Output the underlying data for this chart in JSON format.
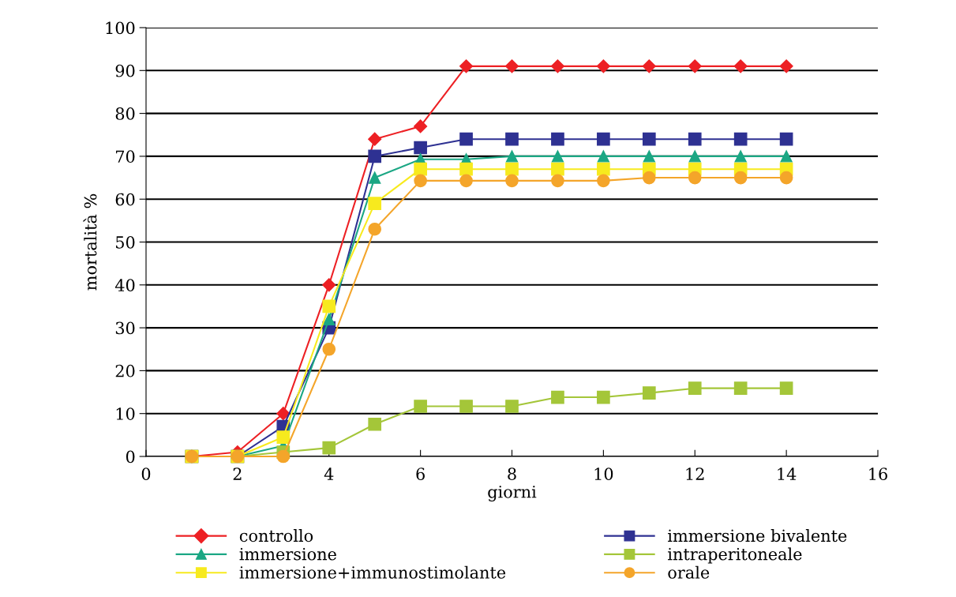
{
  "chart_data": {
    "type": "line",
    "xlabel": "giorni",
    "ylabel": "mortalità %",
    "x": [
      1,
      2,
      3,
      4,
      5,
      6,
      7,
      8,
      9,
      10,
      11,
      12,
      13,
      14
    ],
    "xlim": [
      0,
      16
    ],
    "xticks": [
      0,
      2,
      4,
      6,
      8,
      10,
      12,
      14,
      16
    ],
    "ylim": [
      0,
      100
    ],
    "yticks": [
      0,
      10,
      20,
      30,
      40,
      50,
      60,
      70,
      80,
      90,
      100
    ],
    "grid": "y",
    "legend": "bottom",
    "series": [
      {
        "name": "controllo",
        "color": "#ed2024",
        "marker": "diamond",
        "values": [
          0,
          1,
          10,
          40,
          74,
          77,
          91,
          91,
          91,
          91,
          91,
          91,
          91,
          91
        ]
      },
      {
        "name": "immersione bivalente",
        "color": "#2e3192",
        "marker": "square",
        "values": [
          0,
          0,
          7,
          30,
          70,
          72,
          74,
          74,
          74,
          74,
          74,
          74,
          74,
          74
        ]
      },
      {
        "name": "immersione",
        "color": "#1ba784",
        "marker": "triangle",
        "values": [
          0,
          0,
          2.5,
          32,
          65,
          69.3,
          69.3,
          70,
          70,
          70,
          70,
          70,
          70,
          70
        ]
      },
      {
        "name": "intraperitoneale",
        "color": "#a4c639",
        "marker": "square",
        "values": [
          0,
          0,
          1,
          2,
          7.5,
          11.7,
          11.7,
          11.7,
          13.8,
          13.8,
          14.8,
          15.9,
          15.9,
          15.9
        ]
      },
      {
        "name": "immersione+immunostimolante",
        "color": "#f7ea1e",
        "marker": "square",
        "values": [
          0,
          0,
          4.5,
          35,
          59,
          67,
          67,
          67,
          67,
          67,
          67,
          67,
          67,
          67
        ]
      },
      {
        "name": "orale",
        "color": "#f4a52a",
        "marker": "circle",
        "values": [
          0,
          0,
          0,
          25,
          53,
          64.3,
          64.3,
          64.3,
          64.3,
          64.3,
          65,
          65,
          65,
          65
        ]
      }
    ]
  }
}
